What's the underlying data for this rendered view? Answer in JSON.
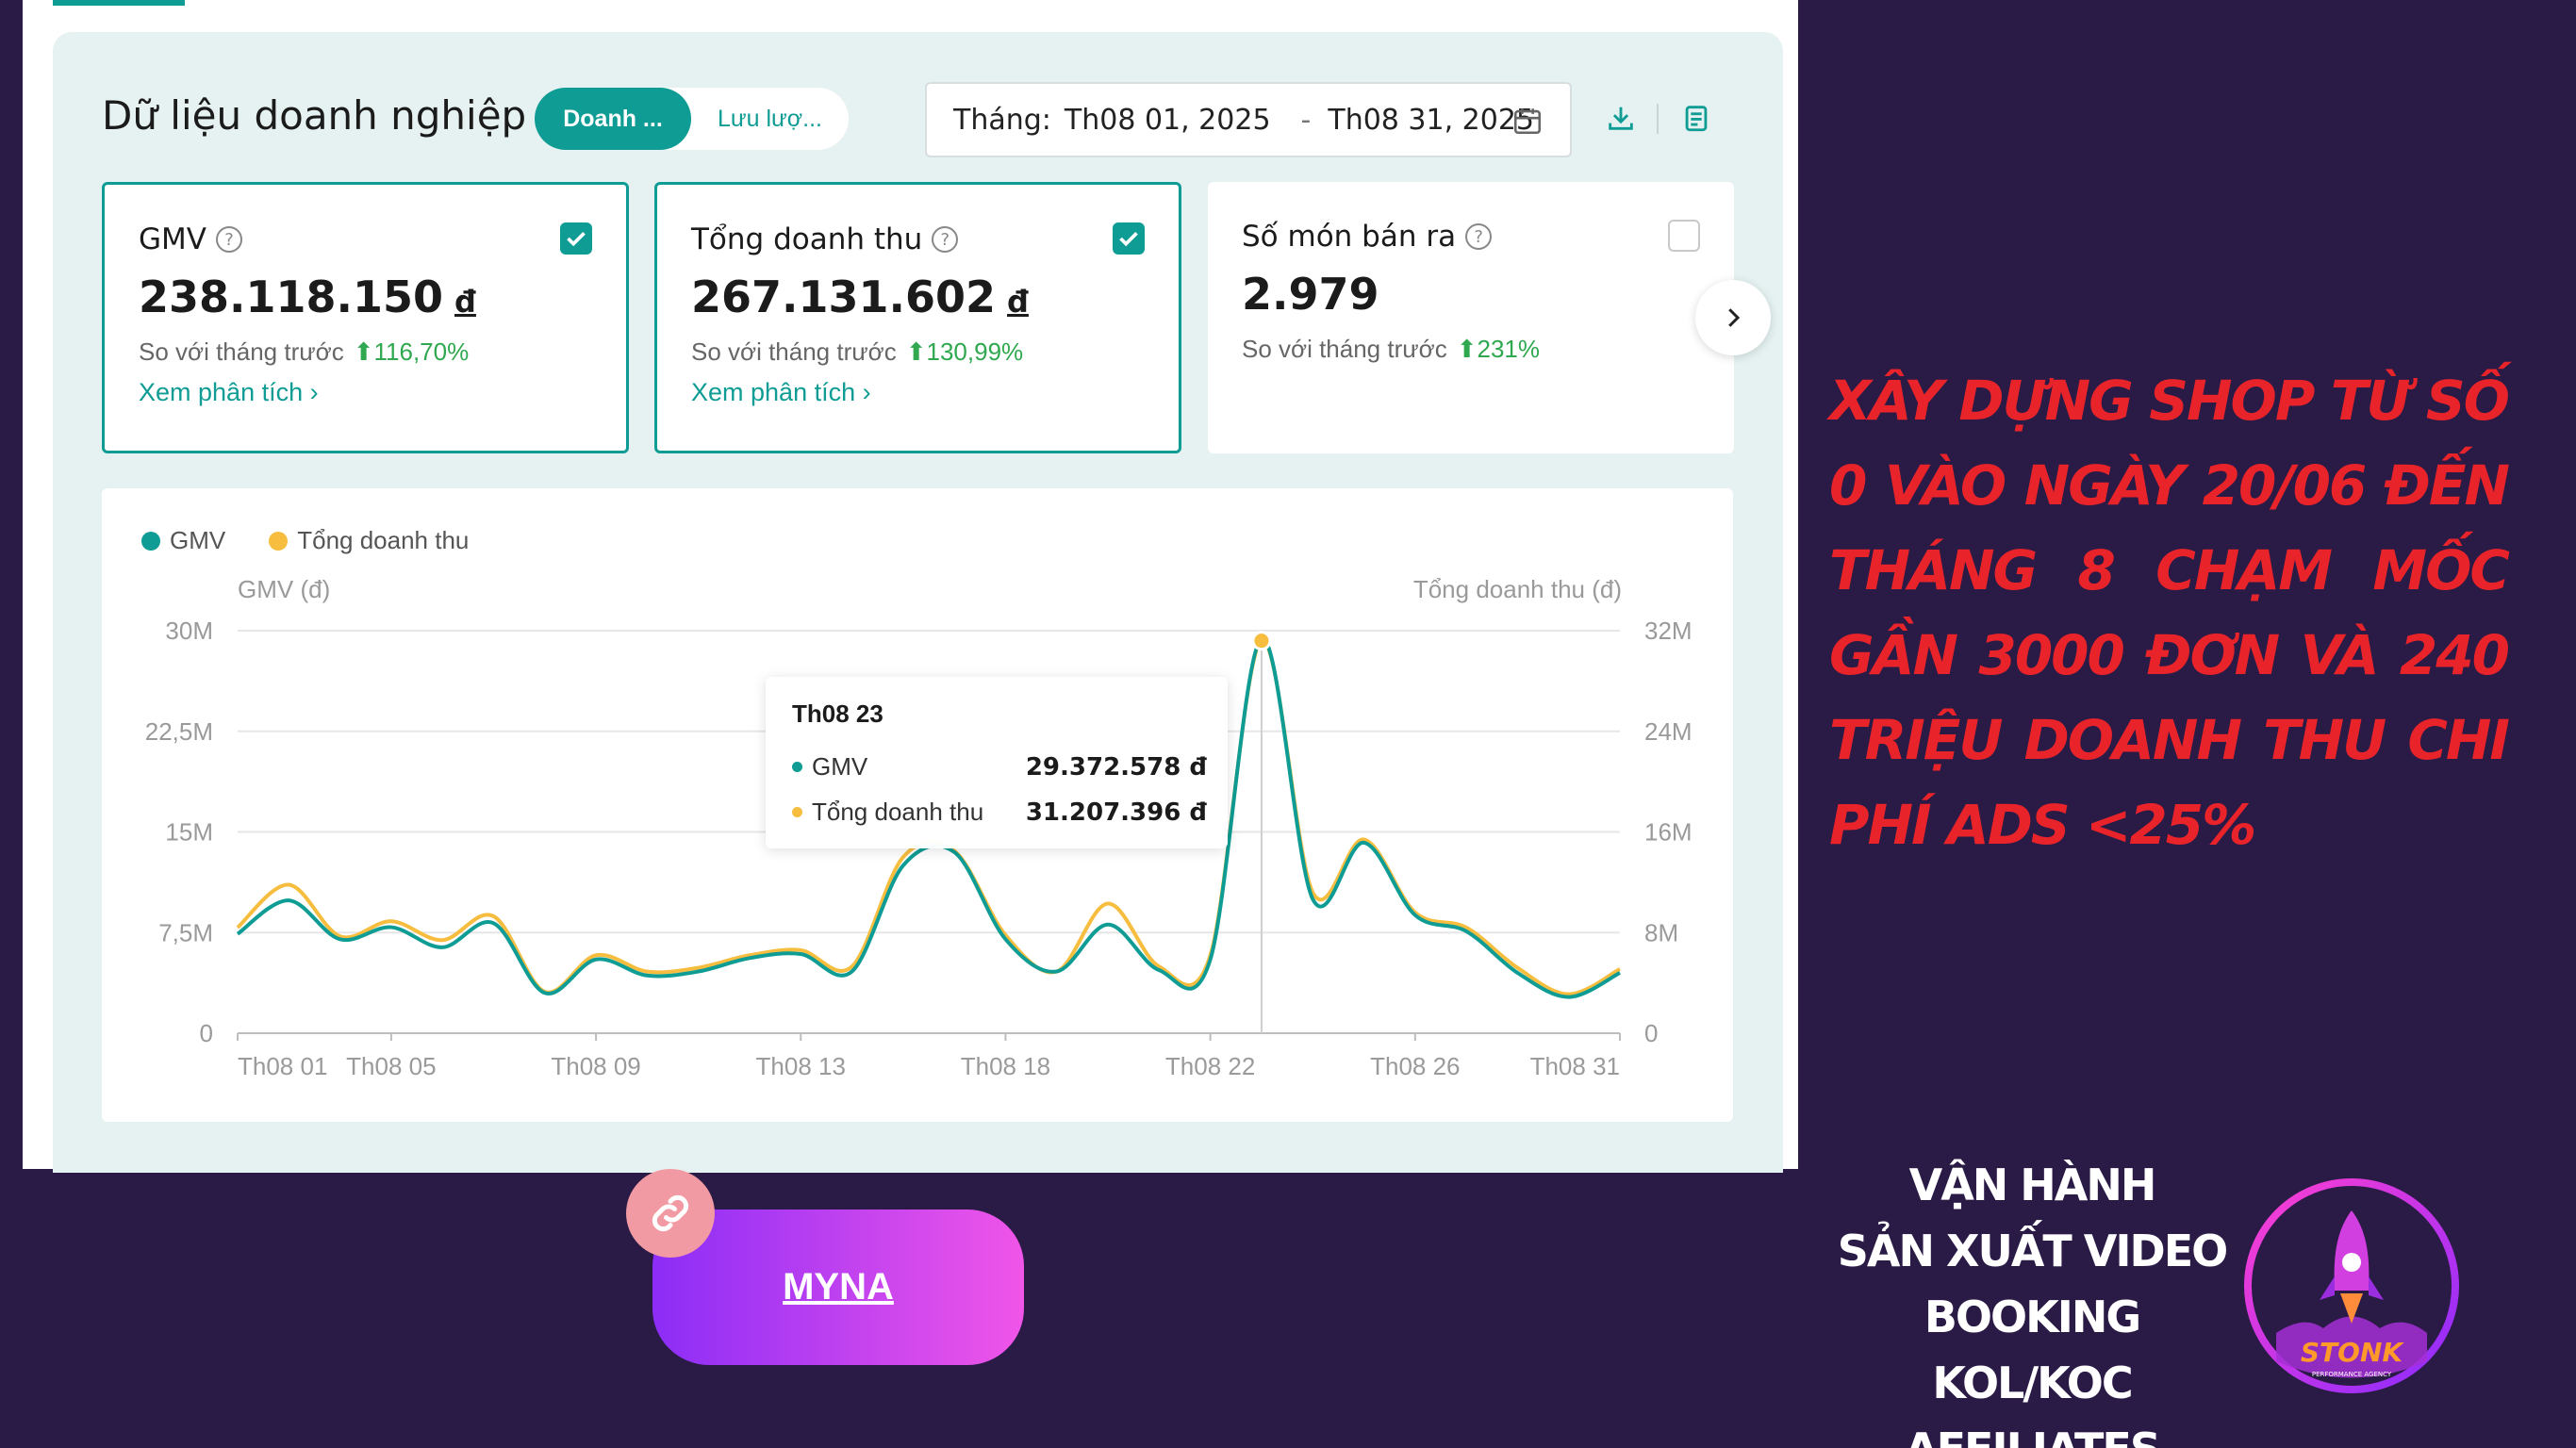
{
  "header": {
    "title": "Dữ liệu doanh nghiệp",
    "tabs": [
      {
        "label": "Doanh ...",
        "active": true
      },
      {
        "label": "Lưu lượ...",
        "active": false
      }
    ],
    "date_label": "Tháng:",
    "date_start": "Th08 01, 2025",
    "date_sep": "-",
    "date_end": "Th08 31, 2025"
  },
  "cards": [
    {
      "label": "GMV",
      "value": "238.118.150",
      "currency": "đ",
      "compare_label": "So với tháng trước",
      "change": "116,70%",
      "link": "Xem phân tích ›",
      "checked": true
    },
    {
      "label": "Tổng doanh thu",
      "value": "267.131.602",
      "currency": "đ",
      "compare_label": "So với tháng trước",
      "change": "130,99%",
      "link": "Xem phân tích ›",
      "checked": true
    },
    {
      "label": "Số món bán ra",
      "value": "2.979",
      "currency": "",
      "compare_label": "So với tháng trước",
      "change": "231%",
      "link": "",
      "checked": false
    }
  ],
  "chart_data": {
    "type": "line",
    "legend": [
      "GMV",
      "Tổng doanh thu"
    ],
    "ylabel_left": "GMV (đ)",
    "ylabel_right": "Tổng doanh thu (đ)",
    "y_ticks_left": [
      "30M",
      "22,5M",
      "15M",
      "7,5M",
      "0"
    ],
    "y_ticks_right": [
      "32M",
      "24M",
      "16M",
      "8M",
      "0"
    ],
    "x_tick_labels": [
      "Th08 01",
      "Th08 05",
      "Th08 09",
      "Th08 13",
      "Th08 18",
      "Th08 22",
      "Th08 26",
      "Th08 31"
    ],
    "x_tick_days": [
      1,
      4,
      8,
      12,
      16,
      20,
      24,
      28
    ],
    "ylim_left": [
      0,
      30000000
    ],
    "ylim_right": [
      0,
      32000000
    ],
    "days": [
      1,
      2,
      3,
      4,
      5,
      6,
      7,
      8,
      9,
      10,
      11,
      12,
      13,
      14,
      15,
      16,
      17,
      18,
      19,
      20,
      21,
      22,
      23,
      24,
      25,
      26,
      27,
      28
    ],
    "series": [
      {
        "name": "GMV",
        "color": "#0e9c94",
        "axis": "left",
        "values": [
          7.4,
          9.9,
          7.0,
          7.9,
          6.4,
          8.2,
          3.0,
          5.5,
          4.3,
          4.6,
          5.6,
          5.9,
          4.6,
          12.5,
          13.5,
          7.0,
          4.6,
          8.1,
          4.7,
          5.5,
          29.4,
          10.0,
          14.2,
          8.8,
          7.6,
          4.5,
          2.7,
          4.5
        ]
      },
      {
        "name": "Tổng doanh thu",
        "color": "#f6bd3f",
        "axis": "right",
        "values": [
          8.4,
          11.8,
          7.7,
          8.9,
          7.4,
          9.3,
          3.3,
          6.2,
          4.9,
          5.2,
          6.2,
          6.6,
          5.3,
          14.0,
          14.5,
          7.8,
          4.9,
          10.3,
          5.3,
          6.2,
          31.2,
          11.2,
          15.4,
          9.6,
          8.4,
          5.2,
          3.1,
          5.1
        ]
      }
    ],
    "highlight": {
      "title": "Th08 23",
      "day": 21,
      "rows": [
        {
          "name": "GMV",
          "value": "29.372.578 đ"
        },
        {
          "name": "Tổng doanh thu",
          "value": "31.207.396 đ"
        }
      ]
    }
  },
  "right": {
    "headline": "XÂY DỰNG SHOP TỪ SỐ 0 VÀO NGÀY 20/06 ĐẾN THÁNG 8 CHẠM MỐC GẦN 3000 ĐƠN VÀ 240 TRIỆU DOANH THU CHI PHÍ ADS <25%",
    "services": [
      "VẬN HÀNH",
      "SẢN XUẤT VIDEO",
      "BOOKING KOL/KOC",
      "AFFILIATES"
    ],
    "logo_text": "STONK",
    "logo_sub": "PERFORMANCE AGENCY"
  },
  "button": {
    "label": "MYNA"
  }
}
